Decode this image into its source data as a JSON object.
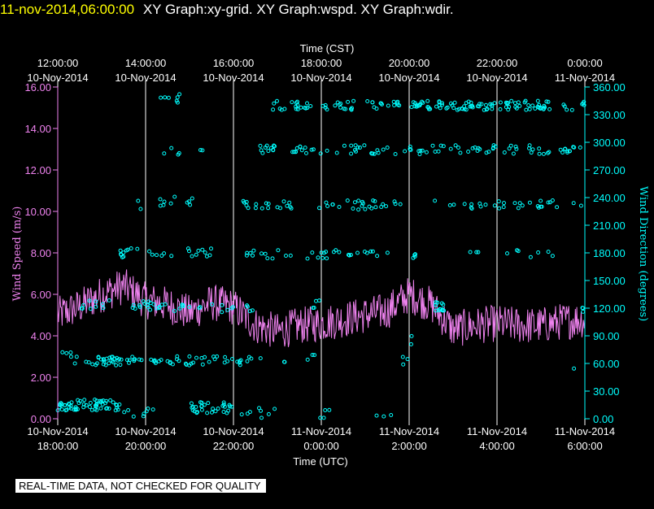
{
  "header": {
    "timestamp": "11-nov-2014,06:00:00",
    "graph_titles": "XY Graph:xy-grid.  XY Graph:wspd.  XY Graph:wdir."
  },
  "qc_banner": "REAL-TIME DATA, NOT CHECKED FOR QUALITY",
  "colors": {
    "background": "#000000",
    "grid": "#ffffff",
    "speed": "#ee82ee",
    "direction": "#00ffff",
    "title": "#ffff00"
  },
  "chart_data": {
    "type": "line",
    "x_top_title": "Time (CST)",
    "x_bottom_title": "Time (UTC)",
    "x_range_hours": [
      0,
      12
    ],
    "x_tick_hours": [
      0,
      2,
      4,
      6,
      8,
      10,
      12
    ],
    "x_top_ticks": [
      {
        "time": "12:00:00",
        "date": "10-Nov-2014"
      },
      {
        "time": "14:00:00",
        "date": "10-Nov-2014"
      },
      {
        "time": "16:00:00",
        "date": "10-Nov-2014"
      },
      {
        "time": "18:00:00",
        "date": "10-Nov-2014"
      },
      {
        "time": "20:00:00",
        "date": "10-Nov-2014"
      },
      {
        "time": "22:00:00",
        "date": "10-Nov-2014"
      },
      {
        "time": "0:00:00",
        "date": "11-Nov-2014"
      }
    ],
    "x_bottom_ticks": [
      {
        "date": "10-Nov-2014",
        "time": "18:00:00"
      },
      {
        "date": "10-Nov-2014",
        "time": "20:00:00"
      },
      {
        "date": "10-Nov-2014",
        "time": "22:00:00"
      },
      {
        "date": "11-Nov-2014",
        "time": "0:00:00"
      },
      {
        "date": "11-Nov-2014",
        "time": "2:00:00"
      },
      {
        "date": "11-Nov-2014",
        "time": "4:00:00"
      },
      {
        "date": "11-Nov-2014",
        "time": "6:00:00"
      }
    ],
    "y_left": {
      "label": "Wind Speed (m/s)",
      "range": [
        0,
        16
      ],
      "ticks": [
        "0.00",
        "2.00",
        "4.00",
        "6.00",
        "8.00",
        "10.00",
        "12.00",
        "14.00",
        "16.00"
      ]
    },
    "y_right": {
      "label": "Wind Direction (degrees)",
      "range": [
        0,
        360
      ],
      "ticks": [
        "0.00",
        "30.00",
        "60.00",
        "90.00",
        "120.00",
        "150.00",
        "180.00",
        "210.00",
        "240.00",
        "270.00",
        "300.00",
        "330.00",
        "360.00"
      ]
    },
    "grid": "vertical lines at x ticks",
    "series": [
      {
        "kind": "line",
        "axis": "left",
        "color": "#ee82ee",
        "x_hours": [
          0,
          0.5,
          1,
          1.5,
          2,
          2.5,
          3,
          3.5,
          4,
          4.5,
          5,
          5.5,
          6,
          6.5,
          7,
          7.5,
          8,
          8.5,
          9,
          9.5,
          10,
          10.5,
          11,
          11.5,
          12
        ],
        "values": [
          5.0,
          5.4,
          6.0,
          6.4,
          5.7,
          5.5,
          5.1,
          5.6,
          5.4,
          4.5,
          4.2,
          4.5,
          4.6,
          4.8,
          5.0,
          5.2,
          6.0,
          5.5,
          4.3,
          4.5,
          4.6,
          4.5,
          4.5,
          4.7,
          4.8
        ],
        "noise_amplitude": 0.9
      },
      {
        "kind": "scatter",
        "axis": "right",
        "color": "#00ffff",
        "bands_degrees": [
          15,
          60,
          120,
          180,
          230,
          290,
          340
        ],
        "clusters": [
          {
            "from": 0.0,
            "to": 1.5,
            "deg": 15,
            "n": 60
          },
          {
            "from": 1.5,
            "to": 2.2,
            "deg": 6,
            "n": 8
          },
          {
            "from": 3.0,
            "to": 4.0,
            "deg": 12,
            "n": 30
          },
          {
            "from": 4.0,
            "to": 5.0,
            "deg": 6,
            "n": 8
          },
          {
            "from": 5.6,
            "to": 6.2,
            "deg": 4,
            "n": 4
          },
          {
            "from": 7.2,
            "to": 7.8,
            "deg": 3,
            "n": 3
          },
          {
            "from": 0.1,
            "to": 0.3,
            "deg": 75,
            "n": 3
          },
          {
            "from": 0.3,
            "to": 2.0,
            "deg": 63,
            "n": 40
          },
          {
            "from": 2.0,
            "to": 4.5,
            "deg": 63,
            "n": 40
          },
          {
            "from": 4.5,
            "to": 6.0,
            "deg": 65,
            "n": 6
          },
          {
            "from": 7.8,
            "to": 8.0,
            "deg": 63,
            "n": 3
          },
          {
            "from": 8.0,
            "to": 8.2,
            "deg": 85,
            "n": 2
          },
          {
            "from": 11.7,
            "to": 11.8,
            "deg": 58,
            "n": 1
          },
          {
            "from": 0.5,
            "to": 1.2,
            "deg": 124,
            "n": 10
          },
          {
            "from": 1.7,
            "to": 2.3,
            "deg": 123,
            "n": 14
          },
          {
            "from": 2.3,
            "to": 4.5,
            "deg": 120,
            "n": 22
          },
          {
            "from": 5.8,
            "to": 6.0,
            "deg": 125,
            "n": 4
          },
          {
            "from": 8.6,
            "to": 8.8,
            "deg": 122,
            "n": 14
          },
          {
            "from": 11.9,
            "to": 12.0,
            "deg": 121,
            "n": 3
          },
          {
            "from": 1.4,
            "to": 1.6,
            "deg": 179,
            "n": 6
          },
          {
            "from": 1.5,
            "to": 3.5,
            "deg": 180,
            "n": 20
          },
          {
            "from": 4.1,
            "to": 6.0,
            "deg": 178,
            "n": 15
          },
          {
            "from": 6.0,
            "to": 7.7,
            "deg": 178,
            "n": 18
          },
          {
            "from": 8.0,
            "to": 8.2,
            "deg": 176,
            "n": 4
          },
          {
            "from": 9.3,
            "to": 9.6,
            "deg": 178,
            "n": 3
          },
          {
            "from": 10.2,
            "to": 11.5,
            "deg": 178,
            "n": 7
          },
          {
            "from": 1.8,
            "to": 1.9,
            "deg": 232,
            "n": 2
          },
          {
            "from": 2.0,
            "to": 3.3,
            "deg": 236,
            "n": 10
          },
          {
            "from": 4.2,
            "to": 12.0,
            "deg": 232,
            "n": 75
          },
          {
            "from": 2.3,
            "to": 3.3,
            "deg": 290,
            "n": 6
          },
          {
            "from": 4.6,
            "to": 12.0,
            "deg": 292,
            "n": 100
          },
          {
            "from": 2.3,
            "to": 2.8,
            "deg": 348,
            "n": 7
          },
          {
            "from": 4.8,
            "to": 12.0,
            "deg": 340,
            "n": 150
          }
        ]
      }
    ]
  }
}
